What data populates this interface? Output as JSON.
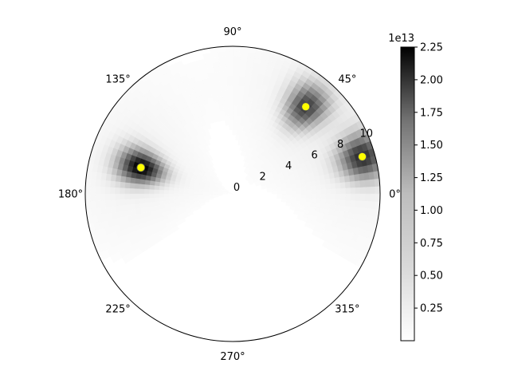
{
  "chart_data": {
    "type": "heatmap",
    "projection": "polar",
    "title": "",
    "xlabel": "",
    "ylabel": "",
    "theta_ticks": [
      0,
      45,
      90,
      135,
      180,
      225,
      270,
      315
    ],
    "theta_tick_labels": [
      "0°",
      "45°",
      "90°",
      "135°",
      "180°",
      "225°",
      "270°",
      "315°"
    ],
    "r_ticks": [
      0,
      2,
      4,
      6,
      8,
      10
    ],
    "r_tick_labels": [
      "0",
      "2",
      "4",
      "6",
      "8",
      "10"
    ],
    "rlim": [
      0,
      10.5
    ],
    "r_label_angle_deg": 22.5,
    "grid": false,
    "colormap": "Greys",
    "colorbar": {
      "range": [
        0.0,
        22500000000000.0
      ],
      "ticks": [
        0.25,
        0.5,
        0.75,
        1.0,
        1.25,
        1.5,
        1.75,
        2.0,
        2.25
      ],
      "tick_labels": [
        "0.25",
        "0.50",
        "0.75",
        "1.00",
        "1.25",
        "1.50",
        "1.75",
        "2.00",
        "2.25"
      ],
      "offset_label": "1e13"
    },
    "sources": [
      {
        "theta_deg": 50,
        "r": 8.1,
        "intensity": 1.6
      },
      {
        "theta_deg": 16,
        "r": 9.6,
        "intensity": 1.75
      },
      {
        "theta_deg": 164,
        "r": 6.8,
        "intensity": 2.2
      }
    ],
    "markers": {
      "color": "#ffff00",
      "points": [
        {
          "theta_deg": 50,
          "r": 8.1
        },
        {
          "theta_deg": 16,
          "r": 9.6
        },
        {
          "theta_deg": 164,
          "r": 6.8
        }
      ]
    }
  }
}
